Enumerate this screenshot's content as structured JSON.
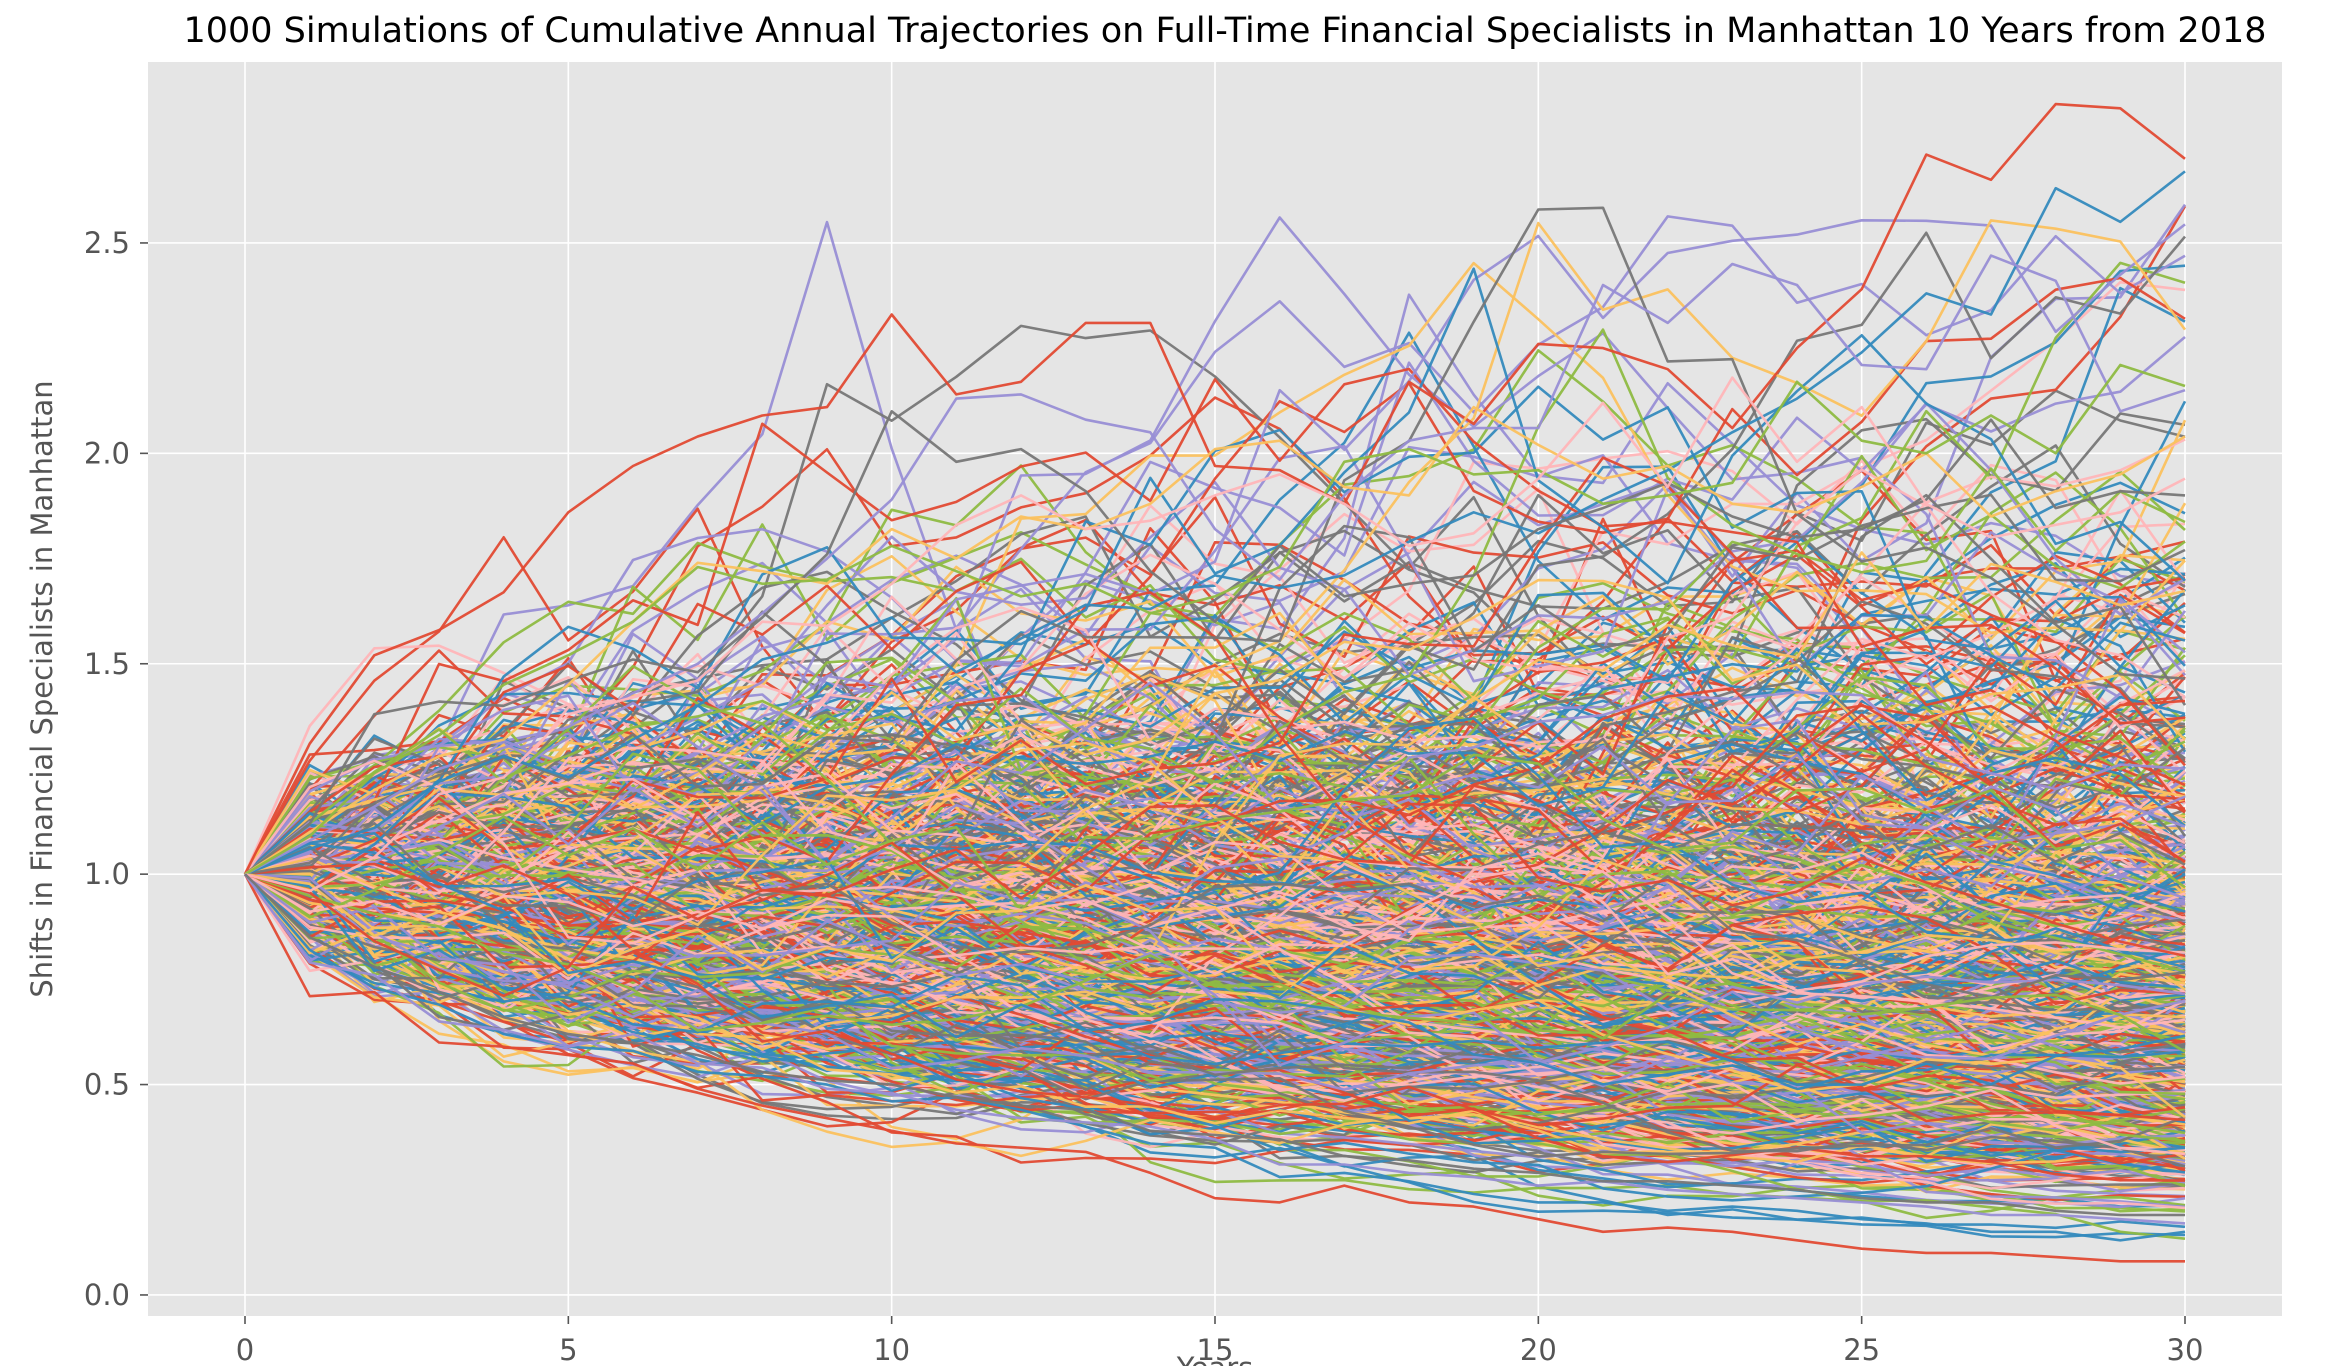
{
  "chart_data": {
    "type": "line",
    "title": "1000 Simulations of Cumulative Annual Trajectories on Full-Time Financial Specialists in Manhattan 10 Years from 2018",
    "xlabel": "Years",
    "ylabel": "Shifts in Financial Specialists in Manhattan",
    "xlim": [
      -1.5,
      31.5
    ],
    "ylim": [
      -0.05,
      2.93
    ],
    "x_ticks": [
      0,
      5,
      10,
      15,
      20,
      25,
      30
    ],
    "x_tick_labels": [
      "0",
      "5",
      "10",
      "15",
      "20",
      "25",
      "30"
    ],
    "y_ticks": [
      0.0,
      0.5,
      1.0,
      1.5,
      2.0,
      2.5
    ],
    "y_tick_labels": [
      "0.0",
      "0.5",
      "1.0",
      "1.5",
      "2.0",
      "2.5"
    ],
    "grid": true,
    "legend": false,
    "num_simulations": 1000,
    "x": [
      0,
      1,
      2,
      3,
      4,
      5,
      6,
      7,
      8,
      9,
      10,
      11,
      12,
      13,
      14,
      15,
      16,
      17,
      18,
      19,
      20,
      21,
      22,
      23,
      24,
      25,
      26,
      27,
      28,
      29,
      30
    ],
    "start_value": 1.0,
    "colors": [
      "#e24a33",
      "#348abd",
      "#988ed5",
      "#777777",
      "#fbc15e",
      "#8eba42",
      "#ffb5b8"
    ],
    "series": [
      {
        "values": [
          1.0,
          1.31,
          1.52,
          1.58,
          1.67,
          1.86,
          1.97,
          2.04,
          2.09,
          2.11,
          2.33,
          2.14,
          2.17,
          2.31,
          2.31,
          1.97,
          1.96,
          1.88,
          2.17,
          2.07,
          2.26,
          2.25,
          2.2,
          2.06,
          2.25,
          2.39,
          2.71,
          2.65,
          2.83,
          2.82,
          2.7
        ]
      },
      {
        "values": [
          1.0,
          1.06,
          1.11,
          1.22,
          1.28,
          1.23,
          1.32,
          1.4,
          1.51,
          1.55,
          1.61,
          1.48,
          1.56,
          1.64,
          1.63,
          1.71,
          1.68,
          1.71,
          1.79,
          1.86,
          1.81,
          1.89,
          1.96,
          2.05,
          2.13,
          2.24,
          2.38,
          2.33,
          2.63,
          2.55,
          2.67
        ]
      },
      {
        "values": [
          1.0,
          1.08,
          1.16,
          1.25,
          1.3,
          1.35,
          1.43,
          1.5,
          1.62,
          1.75,
          1.89,
          2.13,
          2.14,
          2.08,
          2.05,
          1.82,
          1.7,
          1.9,
          2.03,
          2.06,
          2.06,
          2.4,
          2.31,
          2.45,
          2.4,
          2.21,
          2.2,
          2.47,
          2.41,
          2.1,
          2.15
        ]
      },
      {
        "values": [
          1.0,
          1.12,
          1.38,
          1.41,
          1.4,
          1.46,
          1.51,
          1.48,
          1.61,
          1.76,
          2.1,
          1.98,
          2.01,
          1.91,
          1.72,
          1.6,
          1.78,
          1.66,
          1.69,
          1.71,
          1.82,
          1.87,
          1.93,
          1.85,
          1.8,
          1.82,
          1.89,
          2.08,
          1.87,
          1.91,
          1.9
        ]
      },
      {
        "values": [
          1.0,
          1.1,
          1.2,
          1.28,
          1.32,
          1.45,
          1.6,
          1.74,
          1.72,
          1.69,
          1.82,
          1.75,
          1.85,
          1.82,
          1.88,
          2.01,
          2.03,
          1.92,
          1.9,
          2.11,
          2.02,
          1.94,
          1.97,
          1.88,
          1.86,
          1.92,
          2.0,
          1.85,
          1.91,
          1.95,
          2.04
        ]
      },
      {
        "values": [
          1.0,
          1.09,
          1.24,
          1.33,
          1.45,
          1.52,
          1.6,
          1.73,
          1.69,
          1.7,
          1.78,
          1.72,
          1.66,
          1.69,
          1.62,
          1.66,
          1.73,
          1.98,
          2.01,
          1.95,
          1.96,
          1.88,
          1.9,
          1.93,
          2.17,
          2.03,
          2.0,
          2.09,
          2.0,
          2.21,
          2.16
        ]
      },
      {
        "values": [
          1.0,
          0.96,
          1.04,
          1.19,
          1.23,
          1.38,
          1.42,
          1.46,
          1.6,
          1.59,
          1.69,
          1.83,
          1.9,
          1.82,
          1.84,
          1.9,
          1.95,
          1.88,
          1.78,
          1.81,
          1.94,
          2.12,
          1.92,
          2.18,
          1.98,
          2.11,
          1.88,
          1.8,
          1.83,
          1.86,
          1.94
        ]
      },
      {
        "values": [
          1.0,
          0.71,
          0.72,
          0.6,
          0.59,
          0.57,
          0.55,
          0.49,
          0.45,
          0.42,
          0.39,
          0.36,
          0.35,
          0.34,
          0.29,
          0.23,
          0.22,
          0.26,
          0.22,
          0.21,
          0.18,
          0.15,
          0.16,
          0.15,
          0.13,
          0.11,
          0.1,
          0.1,
          0.09,
          0.08,
          0.08
        ]
      },
      {
        "values": [
          1.0,
          0.82,
          0.73,
          0.69,
          0.62,
          0.59,
          0.58,
          0.53,
          0.52,
          0.5,
          0.46,
          0.47,
          0.44,
          0.4,
          0.36,
          0.35,
          0.28,
          0.29,
          0.27,
          0.24,
          0.22,
          0.22,
          0.2,
          0.21,
          0.2,
          0.18,
          0.17,
          0.15,
          0.15,
          0.13,
          0.15
        ]
      },
      {
        "values": [
          1.0,
          0.79,
          0.76,
          0.65,
          0.63,
          0.59,
          0.62,
          0.55,
          0.54,
          0.49,
          0.48,
          0.44,
          0.42,
          0.41,
          0.4,
          0.37,
          0.31,
          0.31,
          0.29,
          0.28,
          0.26,
          0.27,
          0.25,
          0.24,
          0.23,
          0.22,
          0.21,
          0.19,
          0.19,
          0.18,
          0.17
        ]
      },
      {
        "values": [
          1.0,
          0.85,
          0.78,
          0.72,
          0.66,
          0.62,
          0.6,
          0.57,
          0.53,
          0.51,
          0.5,
          0.47,
          0.45,
          0.44,
          0.39,
          0.38,
          0.37,
          0.33,
          0.32,
          0.3,
          0.29,
          0.27,
          0.27,
          0.26,
          0.25,
          0.23,
          0.22,
          0.22,
          0.2,
          0.19,
          0.19
        ]
      }
    ]
  }
}
